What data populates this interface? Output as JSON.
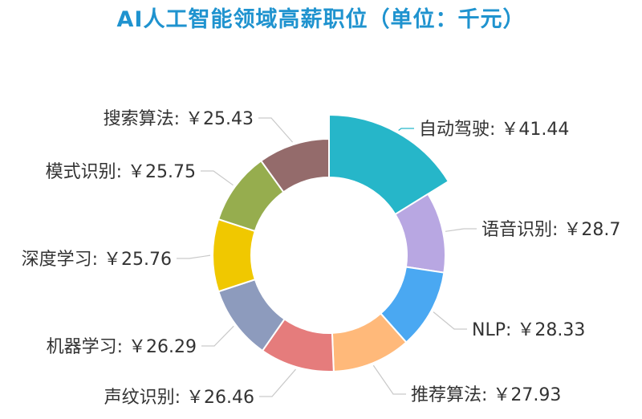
{
  "chart_data": {
    "type": "pie",
    "title": "AI人工智能领域高薪职位（单位：千元）",
    "currency_symbol": "￥",
    "categories": [
      "自动驾驶",
      "语音识别",
      "NLP",
      "推荐算法",
      "声纹识别",
      "机器学习",
      "深度学习",
      "模式识别",
      "搜索算法"
    ],
    "values": [
      41.44,
      28.7,
      28.33,
      27.93,
      26.46,
      26.29,
      25.76,
      25.75,
      25.43
    ],
    "value_labels": [
      "41.44",
      "28.7",
      "28.33",
      "27.93",
      "26.46",
      "26.29",
      "25.76",
      "25.75",
      "25.43"
    ],
    "colors": [
      "#26b6c9",
      "#b8a7e2",
      "#4aa8f2",
      "#ffb97a",
      "#e57c7c",
      "#8d9bbd",
      "#f0c800",
      "#96ad4e",
      "#946b6b"
    ],
    "style": "donut",
    "start_angle_deg": 0,
    "direction": "clockwise",
    "highlighted_category": "自动驾驶"
  }
}
